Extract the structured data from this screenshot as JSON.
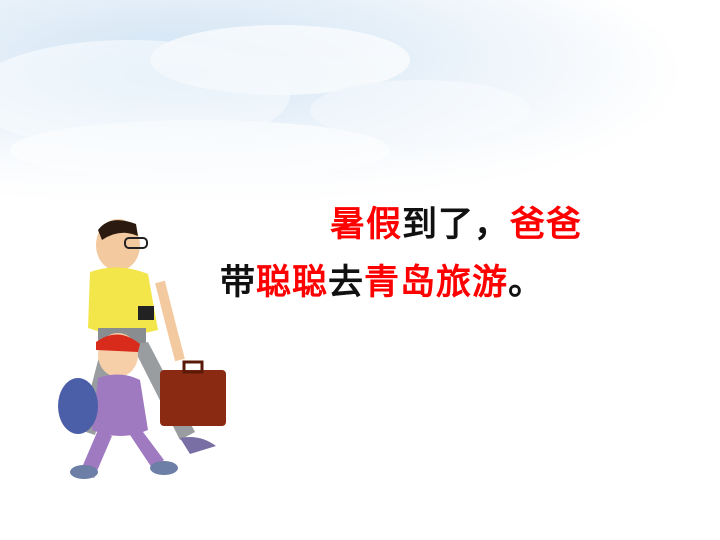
{
  "text": {
    "line1": [
      {
        "t": "暑假",
        "c": "red"
      },
      {
        "t": "到了，",
        "c": "black"
      },
      {
        "t": "爸爸",
        "c": "red"
      }
    ],
    "line2": [
      {
        "t": "带",
        "c": "black"
      },
      {
        "t": "聪聪",
        "c": "red"
      },
      {
        "t": "去",
        "c": "black"
      },
      {
        "t": "青岛旅游",
        "c": "red"
      },
      {
        "t": "。",
        "c": "black"
      }
    ]
  },
  "colors": {
    "highlight": "#ff0000",
    "text": "#111111",
    "sky": "#bcd7ef"
  },
  "illustration": {
    "icons": [
      "father-figure",
      "child-figure",
      "briefcase-icon",
      "camera-icon",
      "backpack-icon"
    ]
  }
}
